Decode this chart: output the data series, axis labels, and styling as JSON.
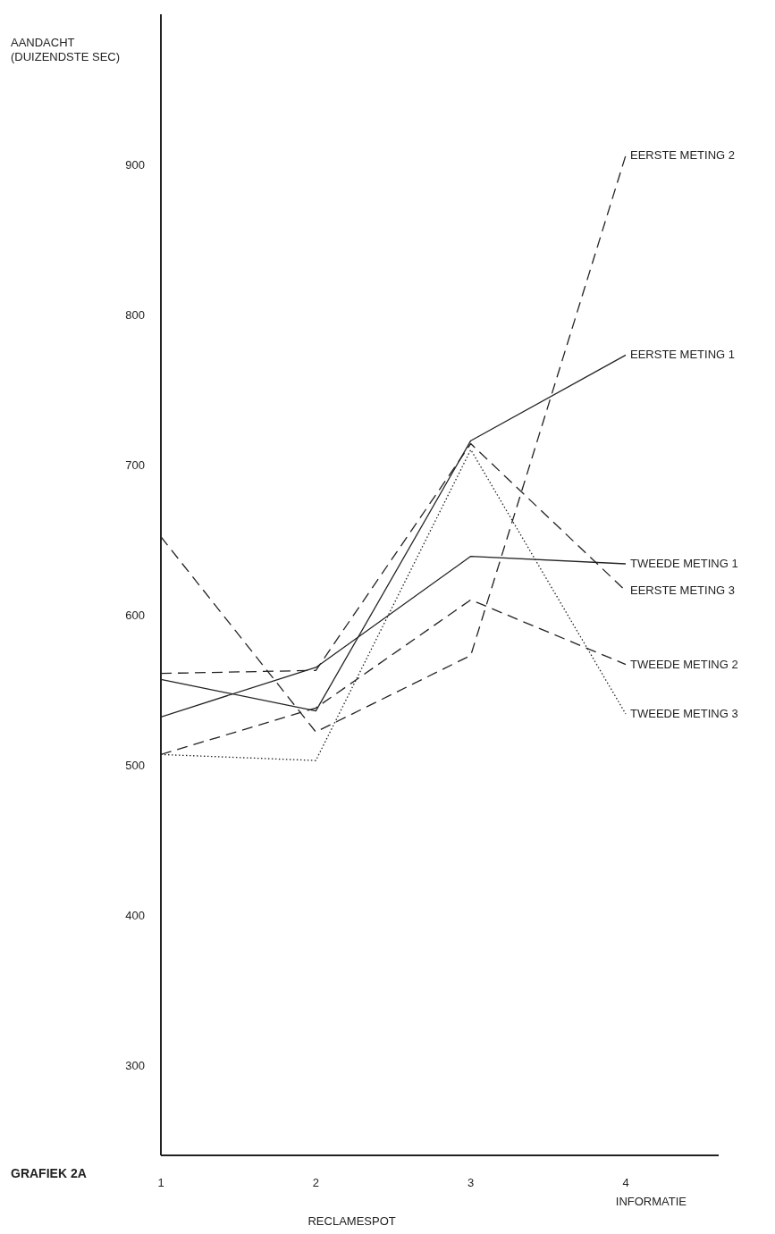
{
  "chart_data": {
    "type": "line",
    "title": "GRAFIEK 2A",
    "ylabel": "AANDACHT (DUIZENDSTE SEC)",
    "x": [
      1,
      2,
      3,
      4
    ],
    "xlim": [
      1,
      4.6
    ],
    "xticks": [
      1,
      2,
      3,
      4
    ],
    "ylim": [
      240,
      1000
    ],
    "yticks": [
      300,
      400,
      500,
      600,
      700,
      800,
      900
    ],
    "grid": false,
    "legend": false,
    "marker": "none",
    "annotations": [
      "RECLAMESPOT",
      "INFORMATIE"
    ],
    "series": [
      {
        "name": "EERSTE METING 2",
        "color": "#222222",
        "line_style": "dashed",
        "values": [
          652,
          522,
          573,
          906
        ]
      },
      {
        "name": "EERSTE METING 1",
        "color": "#222222",
        "line_style": "solid",
        "values": [
          557,
          536,
          716,
          773
        ]
      },
      {
        "name": "TWEEDE METING 1",
        "color": "#222222",
        "line_style": "solid",
        "values": [
          532,
          565,
          639,
          634
        ]
      },
      {
        "name": "EERSTE METING 3",
        "color": "#222222",
        "line_style": "dashed",
        "values": [
          561,
          563,
          714,
          616
        ]
      },
      {
        "name": "TWEEDE METING 2",
        "color": "#222222",
        "line_style": "dashed",
        "values": [
          507,
          538,
          610,
          567
        ]
      },
      {
        "name": "TWEEDE METING 3",
        "color": "#222222",
        "line_style": "dotted",
        "values": [
          507,
          503,
          710,
          534
        ]
      }
    ]
  }
}
